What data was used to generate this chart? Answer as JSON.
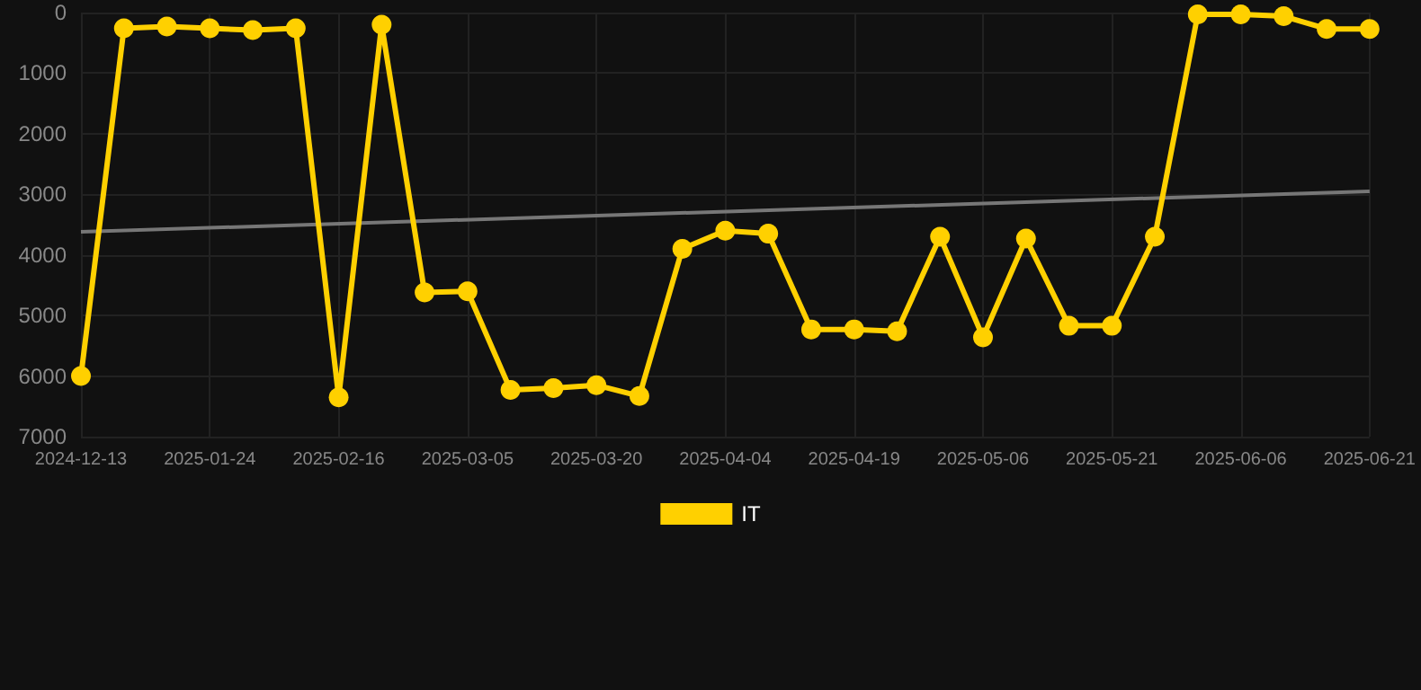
{
  "chart_data": {
    "type": "line",
    "categories": [
      "2024-12-13",
      null,
      null,
      "2025-01-24",
      null,
      null,
      "2025-02-16",
      null,
      null,
      "2025-03-05",
      null,
      null,
      "2025-03-20",
      null,
      null,
      "2025-04-04",
      null,
      null,
      "2025-04-19",
      null,
      null,
      "2025-05-06",
      null,
      null,
      "2025-05-21",
      null,
      null,
      "2025-06-06",
      null,
      null,
      "2025-06-21"
    ],
    "series": [
      {
        "name": "IT",
        "color": "#ffd000",
        "marker": "circle",
        "values": [
          6000,
          260,
          230,
          260,
          290,
          260,
          6350,
          200,
          4620,
          4600,
          6230,
          6200,
          6150,
          6330,
          3900,
          3600,
          3650,
          5230,
          5230,
          5260,
          3700,
          5360,
          3730,
          5170,
          5170,
          3700,
          30,
          30,
          60,
          270,
          270
        ]
      },
      {
        "color": "#777777",
        "marker": "none",
        "values": [
          3620,
          null,
          null,
          null,
          null,
          null,
          null,
          null,
          null,
          null,
          null,
          null,
          null,
          null,
          null,
          null,
          null,
          null,
          null,
          null,
          null,
          null,
          null,
          null,
          null,
          null,
          null,
          null,
          null,
          null,
          2950
        ]
      }
    ],
    "ylim": [
      7000,
      0
    ],
    "yticks": [
      0,
      1000,
      2000,
      3000,
      4000,
      5000,
      6000,
      7000
    ],
    "grid": true,
    "legend": "bottom"
  }
}
